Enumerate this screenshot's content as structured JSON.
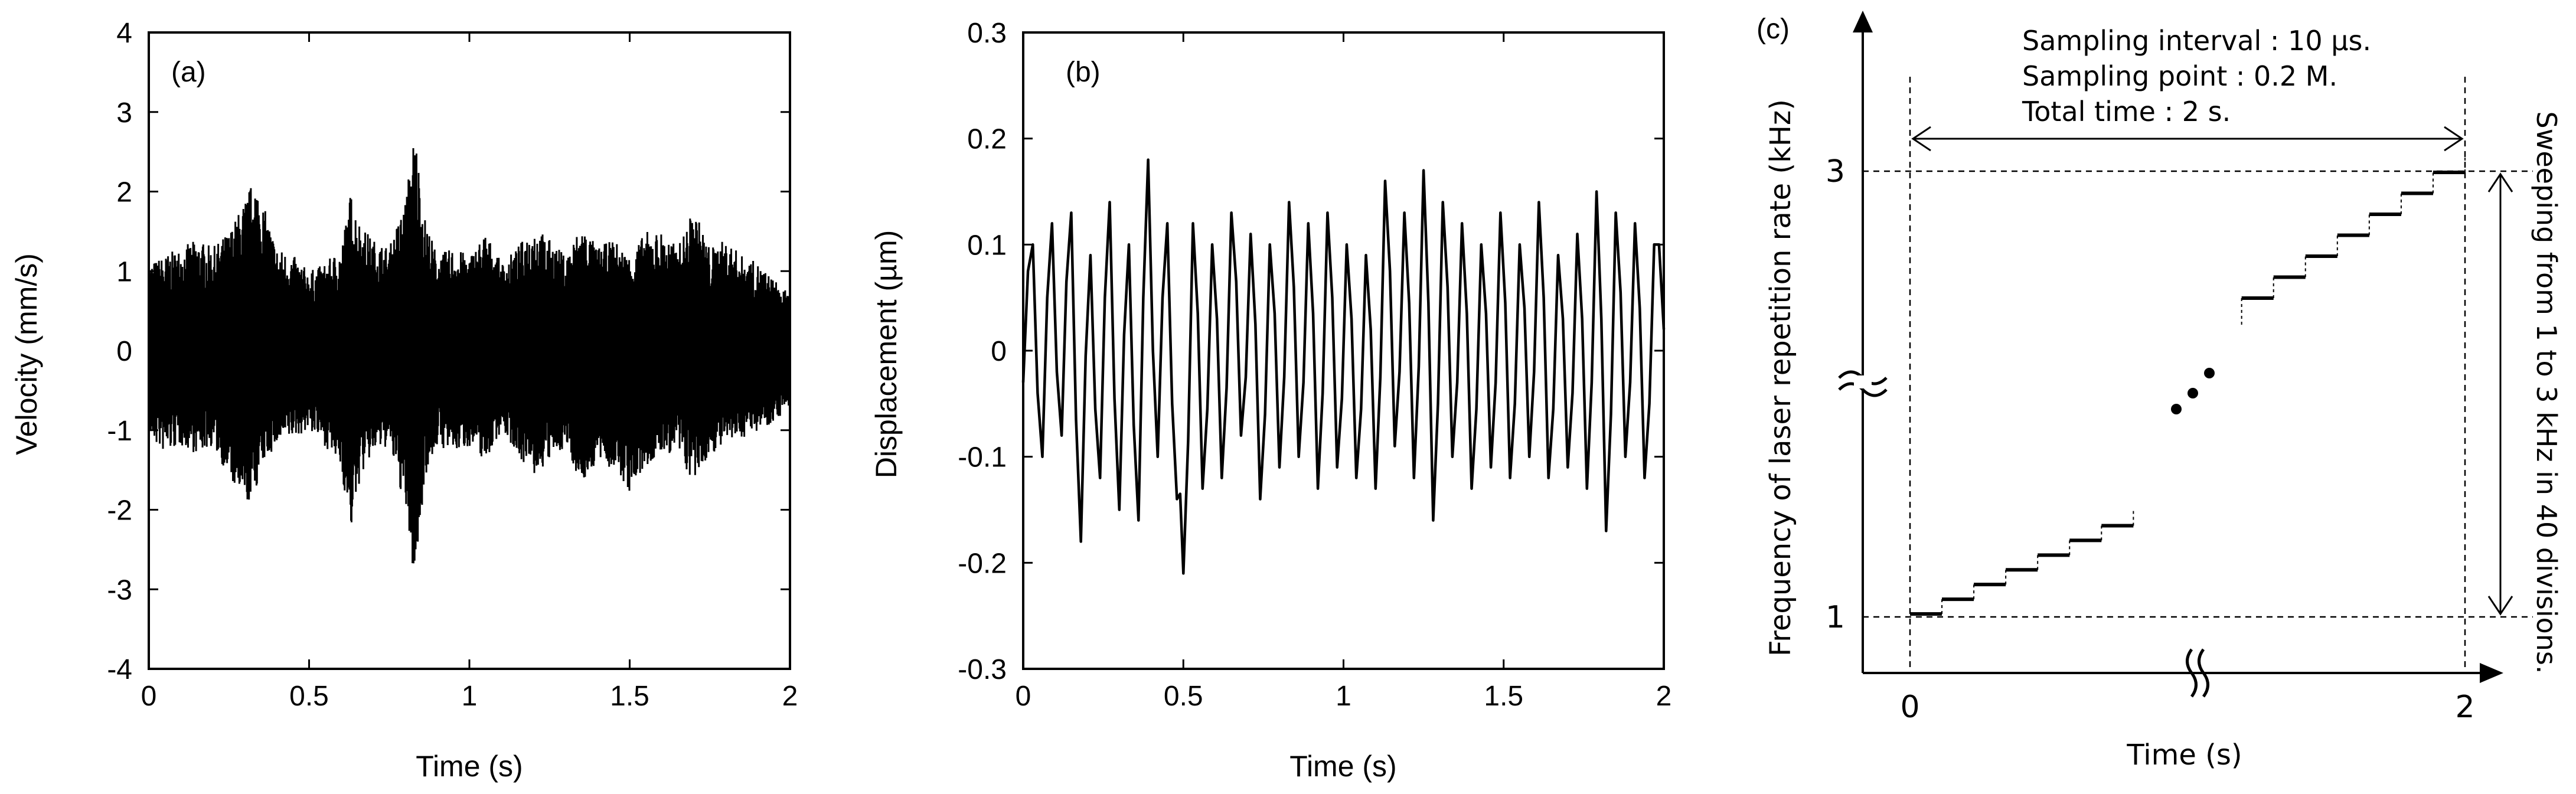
{
  "colors": {
    "ink": "#000000",
    "background": "#ffffff"
  },
  "chart_data": [
    {
      "id": "a",
      "type": "line",
      "panel_label": "(a)",
      "xlabel": "Time (s)",
      "ylabel": "Velocity (mm/s)",
      "xlim": [
        0,
        2
      ],
      "ylim": [
        -4,
        4
      ],
      "xticks": [
        0,
        0.5,
        1,
        1.5,
        2
      ],
      "xtick_labels": [
        "0",
        "0.5",
        "1",
        "1.5",
        "2"
      ],
      "yticks": [
        -4,
        -3,
        -2,
        -1,
        0,
        1,
        2,
        3,
        4
      ],
      "ytick_labels": [
        "-4",
        "-3",
        "-2",
        "-1",
        "0",
        "1",
        "2",
        "3",
        "4"
      ],
      "grid": false,
      "series": [
        {
          "style": "dense noisy waveform (filled band)",
          "x": [
            0.0,
            0.05,
            0.1,
            0.15,
            0.2,
            0.25,
            0.3,
            0.33,
            0.36,
            0.4,
            0.45,
            0.5,
            0.55,
            0.6,
            0.63,
            0.66,
            0.7,
            0.75,
            0.8,
            0.83,
            0.86,
            0.9,
            0.95,
            1.0,
            1.05,
            1.1,
            1.15,
            1.2,
            1.25,
            1.3,
            1.35,
            1.4,
            1.45,
            1.5,
            1.55,
            1.6,
            1.65,
            1.7,
            1.75,
            1.8,
            1.85,
            1.9,
            1.95,
            2.0
          ],
          "upper": [
            1.1,
            1.2,
            1.3,
            1.4,
            1.3,
            1.5,
            1.9,
            2.2,
            1.8,
            1.3,
            1.2,
            1.0,
            1.1,
            1.3,
            2.0,
            1.6,
            1.4,
            1.3,
            1.9,
            2.8,
            1.7,
            1.2,
            1.3,
            1.2,
            1.5,
            1.1,
            1.3,
            1.6,
            1.4,
            1.2,
            1.6,
            1.3,
            1.4,
            1.2,
            1.5,
            1.5,
            1.3,
            1.8,
            1.3,
            1.4,
            1.2,
            1.1,
            0.9,
            0.7
          ],
          "lower": [
            -1.1,
            -1.3,
            -1.2,
            -1.3,
            -1.2,
            -1.6,
            -2.0,
            -1.8,
            -1.4,
            -1.2,
            -1.1,
            -1.0,
            -1.2,
            -1.5,
            -2.3,
            -1.6,
            -1.3,
            -1.2,
            -2.0,
            -3.0,
            -1.6,
            -1.2,
            -1.3,
            -1.2,
            -1.4,
            -1.0,
            -1.3,
            -1.6,
            -1.4,
            -1.2,
            -1.7,
            -1.4,
            -1.5,
            -1.8,
            -1.5,
            -1.3,
            -1.3,
            -1.7,
            -1.3,
            -1.2,
            -1.1,
            -1.0,
            -0.9,
            -0.7
          ]
        }
      ]
    },
    {
      "id": "b",
      "type": "line",
      "panel_label": "(b)",
      "xlabel": "Time (s)",
      "ylabel": "Displacement (µm)",
      "xlim": [
        0,
        2
      ],
      "ylim": [
        -0.3,
        0.3
      ],
      "xticks": [
        0,
        0.5,
        1,
        1.5,
        2
      ],
      "xtick_labels": [
        "0",
        "0.5",
        "1",
        "1.5",
        "2"
      ],
      "yticks": [
        -0.3,
        -0.2,
        -0.1,
        0,
        0.1,
        0.2,
        0.3
      ],
      "ytick_labels": [
        "-0.3",
        "-0.2",
        "-0.1",
        "0",
        "0.1",
        "0.2",
        "0.3"
      ],
      "grid": false,
      "series": [
        {
          "style": "oscillating waveform",
          "x": [
            0.0,
            0.03,
            0.06,
            0.09,
            0.12,
            0.15,
            0.18,
            0.21,
            0.24,
            0.27,
            0.3,
            0.33,
            0.36,
            0.39,
            0.42,
            0.45,
            0.48,
            0.5,
            0.53,
            0.56,
            0.59,
            0.62,
            0.65,
            0.68,
            0.71,
            0.74,
            0.77,
            0.8,
            0.83,
            0.86,
            0.89,
            0.92,
            0.95,
            0.98,
            1.01,
            1.04,
            1.07,
            1.1,
            1.13,
            1.16,
            1.19,
            1.22,
            1.25,
            1.28,
            1.31,
            1.34,
            1.37,
            1.4,
            1.43,
            1.46,
            1.49,
            1.52,
            1.55,
            1.58,
            1.61,
            1.64,
            1.67,
            1.7,
            1.73,
            1.76,
            1.79,
            1.82,
            1.85,
            1.88,
            1.91,
            1.94,
            1.97,
            2.0
          ],
          "y": [
            -0.03,
            0.1,
            -0.1,
            0.12,
            -0.08,
            0.13,
            -0.18,
            0.09,
            -0.12,
            0.14,
            -0.15,
            0.1,
            -0.16,
            0.18,
            -0.1,
            0.12,
            -0.14,
            -0.21,
            0.12,
            -0.13,
            0.1,
            -0.12,
            0.13,
            -0.08,
            0.11,
            -0.14,
            0.1,
            -0.11,
            0.14,
            -0.1,
            0.12,
            -0.13,
            0.13,
            -0.11,
            0.1,
            -0.12,
            0.09,
            -0.13,
            0.16,
            -0.09,
            0.13,
            -0.12,
            0.17,
            -0.16,
            0.14,
            -0.1,
            0.12,
            -0.13,
            0.1,
            -0.11,
            0.13,
            -0.12,
            0.1,
            -0.1,
            0.14,
            -0.12,
            0.09,
            -0.11,
            0.11,
            -0.13,
            0.15,
            -0.17,
            0.13,
            -0.1,
            0.12,
            -0.12,
            0.1,
            0.02
          ]
        }
      ]
    },
    {
      "id": "c",
      "type": "diagram",
      "panel_label": "(c)",
      "xlabel": "Time (s)",
      "ylabel": "Frequency of laser repetition rate (kHz)",
      "xtick_labels": [
        "0",
        "2"
      ],
      "ytick_labels": [
        "1",
        "3"
      ],
      "annotation_lines": [
        "Sampling interval : 10 µs.",
        "Sampling point : 0.2 M.",
        "Total time : 2 s."
      ],
      "side_annotation": "Sweeping from 1 to 3 kHz in 40 divisions.",
      "steps": {
        "start_khz": 1,
        "end_khz": 3,
        "divisions": 40,
        "total_time_s": 2,
        "visible_lower_steps": 7,
        "visible_upper_steps": 7
      }
    }
  ]
}
